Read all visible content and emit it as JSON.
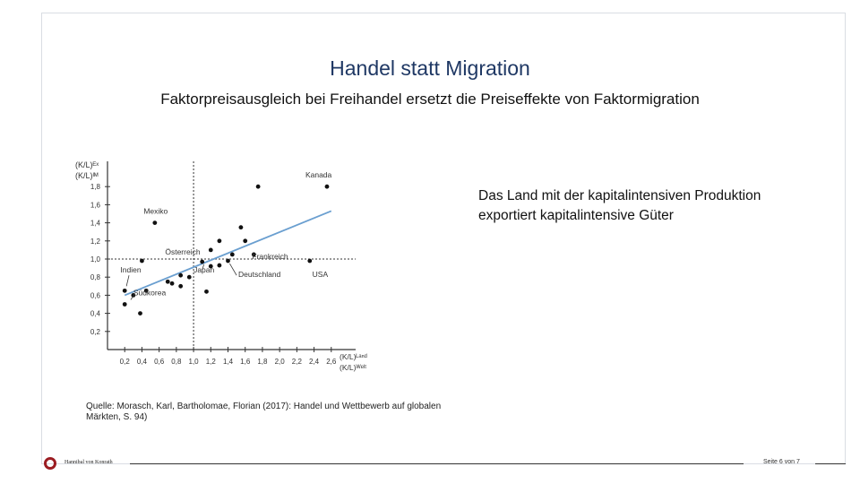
{
  "slide": {
    "title": "Handel statt Migration",
    "subtitle": "Faktorpreisausgleich bei Freihandel ersetzt die Preiseffekte von Faktormigration",
    "note": "Das Land mit der kapitalintensiven Produktion exportiert kapitalintensive Güter",
    "source": "Quelle: Morasch, Karl, Bartholomae, Florian (2017): Handel und Wettbewerb auf globalen Märkten, S. 94)",
    "page": "Seite 6 von 7",
    "logo_text": "Hannibal von Konrath",
    "logo_color": "#9b1c22",
    "title_color": "#1f3864"
  },
  "chart_data": {
    "type": "scatter",
    "ylabel_lines": [
      "(K/L)ᴱˣ",
      "(K/L)ᴵᴹ"
    ],
    "xlabel_lines": [
      "(K/L)ᴸᵃⁿᵈ",
      "(K/L)ᵂᵉˡᵗ"
    ],
    "xlim": [
      0,
      2.8
    ],
    "ylim": [
      0,
      2.0
    ],
    "x_ticks": [
      "0,2",
      "0,4",
      "0,6",
      "0,8",
      "1,0",
      "1,2",
      "1,4",
      "1,6",
      "1,8",
      "2,0",
      "2,2",
      "2,4",
      "2,6"
    ],
    "x_tick_values": [
      0.2,
      0.4,
      0.6,
      0.8,
      1.0,
      1.2,
      1.4,
      1.6,
      1.8,
      2.0,
      2.2,
      2.4,
      2.6
    ],
    "y_ticks": [
      "0,2",
      "0,4",
      "0,6",
      "0,8",
      "1,0",
      "1,2",
      "1,4",
      "1,6",
      "1,8"
    ],
    "y_tick_values": [
      0.2,
      0.4,
      0.6,
      0.8,
      1.0,
      1.2,
      1.4,
      1.6,
      1.8
    ],
    "reference_lines": {
      "x": 1.0,
      "y": 1.0
    },
    "trend_line": {
      "x": [
        0.2,
        2.6
      ],
      "y": [
        0.6,
        1.53
      ],
      "color": "#6a9fd0"
    },
    "points": [
      {
        "x": 2.55,
        "y": 1.8
      },
      {
        "x": 1.75,
        "y": 1.8
      },
      {
        "x": 0.55,
        "y": 1.4
      },
      {
        "x": 1.55,
        "y": 1.35
      },
      {
        "x": 1.6,
        "y": 1.2
      },
      {
        "x": 1.3,
        "y": 1.2
      },
      {
        "x": 1.2,
        "y": 1.1
      },
      {
        "x": 1.45,
        "y": 1.05
      },
      {
        "x": 1.7,
        "y": 1.05
      },
      {
        "x": 1.4,
        "y": 0.98
      },
      {
        "x": 2.35,
        "y": 0.98
      },
      {
        "x": 0.4,
        "y": 0.98
      },
      {
        "x": 1.1,
        "y": 0.97
      },
      {
        "x": 1.3,
        "y": 0.93
      },
      {
        "x": 1.2,
        "y": 0.92
      },
      {
        "x": 0.85,
        "y": 0.82
      },
      {
        "x": 0.95,
        "y": 0.8
      },
      {
        "x": 0.7,
        "y": 0.75
      },
      {
        "x": 0.75,
        "y": 0.73
      },
      {
        "x": 0.85,
        "y": 0.7
      },
      {
        "x": 1.15,
        "y": 0.64
      },
      {
        "x": 0.2,
        "y": 0.65
      },
      {
        "x": 0.45,
        "y": 0.65
      },
      {
        "x": 0.3,
        "y": 0.6
      },
      {
        "x": 0.2,
        "y": 0.5
      },
      {
        "x": 0.38,
        "y": 0.4
      }
    ],
    "annotations": [
      {
        "text": "Kanada",
        "x": 2.3,
        "y": 1.9
      },
      {
        "text": "Mexiko",
        "x": 0.42,
        "y": 1.5
      },
      {
        "text": "Österreich",
        "x": 0.67,
        "y": 1.05
      },
      {
        "text": "Frankreich",
        "x": 1.68,
        "y": 1.0
      },
      {
        "text": "Indien",
        "x": 0.15,
        "y": 0.85
      },
      {
        "text": "Japan",
        "x": 1.0,
        "y": 0.85
      },
      {
        "text": "Deutschland",
        "x": 1.52,
        "y": 0.8
      },
      {
        "text": "USA",
        "x": 2.38,
        "y": 0.8
      },
      {
        "text": "Südkorea",
        "x": 0.3,
        "y": 0.6
      }
    ]
  }
}
